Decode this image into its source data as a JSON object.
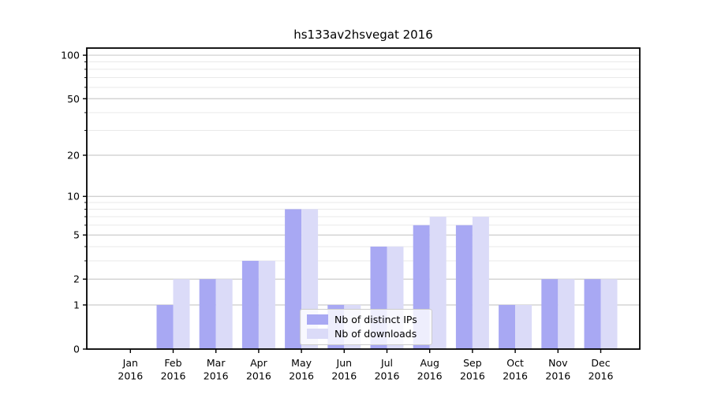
{
  "figure": {
    "background": "#ffffff"
  },
  "colors": {
    "major_grid": "#cccccc",
    "minor_grid": "#e9e9e9",
    "spine": "#000000",
    "text": "#000000",
    "bar_distinct_ips": "#a8a8f3",
    "bar_downloads": "#dbdbf8"
  },
  "chart_data": {
    "type": "bar",
    "title": "hs133av2hsvegat 2016",
    "categories": [
      "Jan 2016",
      "Feb 2016",
      "Mar 2016",
      "Apr 2016",
      "May 2016",
      "Jun 2016",
      "Jul 2016",
      "Aug 2016",
      "Sep 2016",
      "Oct 2016",
      "Nov 2016",
      "Dec 2016"
    ],
    "series": [
      {
        "name": "Nb of distinct IPs",
        "color": "#a8a8f3",
        "values": [
          0,
          1,
          2,
          3,
          8,
          1,
          4,
          6,
          6,
          1,
          2,
          2
        ]
      },
      {
        "name": "Nb of downloads",
        "color": "#dbdbf8",
        "values": [
          0,
          2,
          2,
          3,
          8,
          1,
          4,
          7,
          7,
          1,
          2,
          2
        ]
      }
    ],
    "xlabel": "",
    "ylabel": "",
    "yscale": "log1p",
    "ylim": [
      0,
      112
    ],
    "ytick_values": [
      0,
      1,
      2,
      5,
      10,
      20,
      50,
      100
    ],
    "ytick_labels": [
      "0",
      "1",
      "2",
      "5",
      "10",
      "20",
      "50",
      "100"
    ],
    "yticks_minor": [
      3,
      4,
      6,
      7,
      8,
      9,
      30,
      40,
      60,
      70,
      80,
      90
    ],
    "grid": true,
    "legend_position": "lower center inside"
  }
}
